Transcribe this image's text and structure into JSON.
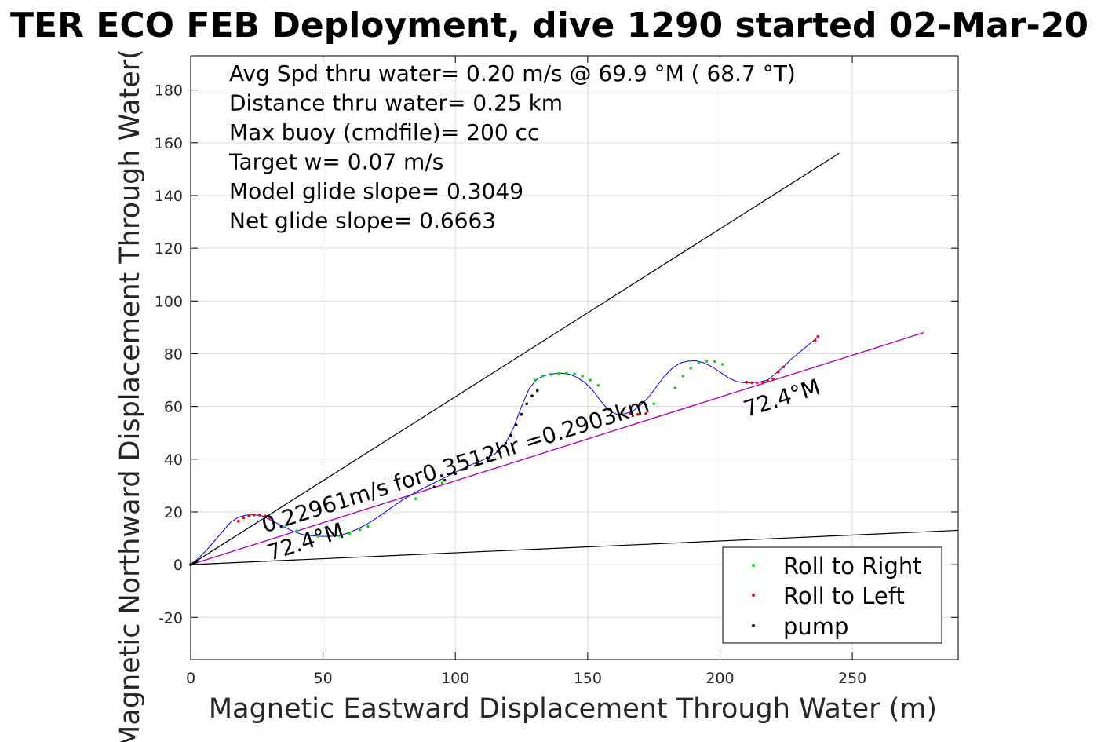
{
  "chart_data": {
    "type": "scatter",
    "title": "TER ECO FEB Deployment, dive 1290 started 02-Mar-20",
    "xlabel": "Magnetic Eastward Displacement Through Water (m)",
    "ylabel": "Magnetic Northward Displacement Through Water(",
    "xlim": [
      0,
      290
    ],
    "ylim": [
      -36,
      193
    ],
    "xticks": [
      0,
      50,
      100,
      150,
      200,
      250
    ],
    "yticks": [
      -20,
      0,
      20,
      40,
      60,
      80,
      100,
      120,
      140,
      160,
      180
    ],
    "grid": true,
    "legend_position": "bottom-right",
    "info_lines": [
      "Avg Spd thru water=  0.20 m/s @  69.9 °M ( 68.7 °T)",
      "Distance thru water=  0.25 km",
      "Max buoy (cmdfile)= 200 cc",
      "Target w= 0.07 m/s",
      "Model glide slope= 0.3049",
      "Net glide slope= 0.6663"
    ],
    "annotations": [
      {
        "text": "0.22961m/s for0.3512hr =0.2903km",
        "x": 28,
        "y": 12,
        "angle_deg": 17.5
      },
      {
        "text": "72.4°M",
        "x": 30,
        "y": 1.5,
        "angle_deg": 17.5
      },
      {
        "text": "72.4°M",
        "x": 210,
        "y": 56,
        "angle_deg": 17.5
      }
    ],
    "lines": [
      {
        "name": "upper glide line",
        "color": "#000000",
        "x": [
          0,
          245
        ],
        "y": [
          0,
          156
        ]
      },
      {
        "name": "lower glide line",
        "color": "#000000",
        "x": [
          0,
          290
        ],
        "y": [
          0,
          13
        ]
      },
      {
        "name": "heading line black",
        "color": "#000000",
        "x": [
          0,
          277
        ],
        "y": [
          0,
          88
        ]
      },
      {
        "name": "heading line magenta",
        "color": "#cc00cc",
        "x": [
          0,
          277
        ],
        "y": [
          0,
          88
        ]
      }
    ],
    "track": {
      "color": "#0000ff",
      "x": [
        0,
        3,
        6,
        9,
        12,
        15,
        18,
        21,
        24,
        27,
        30,
        33,
        36,
        39,
        42,
        45,
        48,
        51,
        54,
        57,
        60,
        63,
        66,
        70,
        75,
        80,
        85,
        90,
        95,
        100,
        105,
        110,
        115,
        119,
        122,
        125,
        128,
        131,
        134,
        137,
        140,
        143,
        146,
        149,
        152,
        155,
        158,
        161,
        164,
        167,
        170,
        173,
        176,
        179,
        182,
        185,
        188,
        191,
        194,
        197,
        200,
        203,
        206,
        209,
        212,
        215,
        218,
        221,
        224,
        227,
        230,
        233,
        236,
        237
      ],
      "y": [
        0,
        2.5,
        5.5,
        9,
        12.5,
        16,
        18,
        18.8,
        18.9,
        18.5,
        17,
        15.5,
        14,
        12.5,
        11.5,
        11,
        10.8,
        10.7,
        10.8,
        11.2,
        12.2,
        13.5,
        15,
        17.5,
        21,
        24.5,
        27.5,
        30,
        32.5,
        35,
        37.5,
        39.5,
        42,
        46,
        52,
        60,
        67,
        70.5,
        71.8,
        72.4,
        72.6,
        72.3,
        71,
        69,
        66,
        62,
        58.5,
        57,
        57.2,
        58.2,
        60.5,
        63.5,
        67.5,
        71.5,
        74.5,
        76.5,
        77.2,
        77.3,
        76.5,
        75,
        73,
        71,
        69.5,
        69,
        69,
        69.3,
        70,
        72.5,
        75,
        78,
        80.5,
        83,
        85.5,
        86.5
      ]
    },
    "series": [
      {
        "name": "Roll to Right",
        "color": "#00dd00",
        "x": [
          36,
          40,
          44,
          48,
          52,
          56,
          60,
          64,
          67,
          85,
          95,
          130,
          133,
          136,
          139,
          142,
          145,
          148,
          151,
          154,
          175,
          183,
          186,
          189,
          192,
          195,
          198,
          201
        ],
        "y": [
          15,
          12.8,
          11.3,
          10.8,
          10.7,
          10.9,
          11.8,
          13.3,
          14.5,
          25,
          31,
          70,
          71.5,
          72.2,
          72.5,
          72.6,
          72.3,
          71.5,
          70,
          68,
          61,
          67,
          71.5,
          74.5,
          76.5,
          77.2,
          77,
          76
        ]
      },
      {
        "name": "Roll to Left",
        "color": "#ff0000",
        "x": [
          0,
          18,
          20,
          22,
          24,
          26,
          28,
          30,
          163,
          166,
          169,
          172,
          210,
          212,
          214,
          216,
          218,
          220,
          222,
          224,
          236,
          237
        ],
        "y": [
          0,
          16.5,
          17.8,
          18.5,
          18.9,
          18.8,
          18.5,
          17.8,
          58,
          57.2,
          57,
          57.3,
          69.2,
          69,
          69,
          69.2,
          69.6,
          70.5,
          73,
          75,
          85,
          86.5
        ]
      },
      {
        "name": "pump",
        "color": "#000000",
        "x": [
          0,
          1,
          2,
          92,
          96,
          100,
          104,
          108,
          112,
          116,
          119,
          121,
          123,
          125,
          127,
          129,
          131
        ],
        "y": [
          0,
          0.5,
          1,
          29.5,
          32,
          34.5,
          36.5,
          38.5,
          40.5,
          43,
          46,
          49,
          53,
          57,
          61,
          64,
          66
        ]
      }
    ]
  }
}
